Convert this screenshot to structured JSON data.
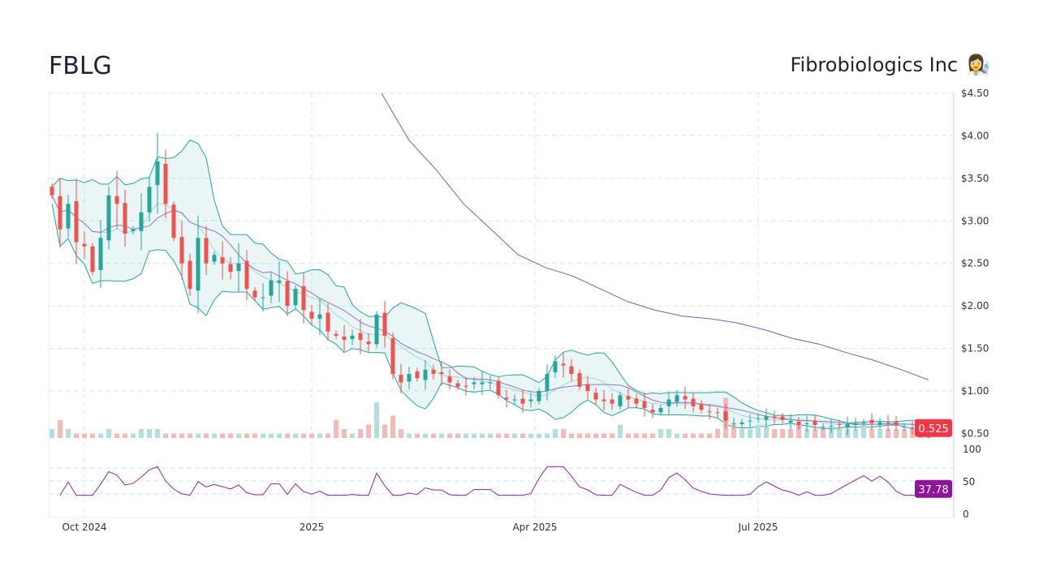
{
  "header": {
    "ticker": "FBLG",
    "company": "Fibrobiologics Inc",
    "company_icon": "scientist-emoji"
  },
  "colors": {
    "up": "#26a69a",
    "down": "#ef5350",
    "band": "#26a69a",
    "sma_long": "#5c6bc0",
    "sma_short": "#9575cd",
    "rsi": "#8e24aa",
    "last_price_badge": "#f23645",
    "rsi_badge": "#8e1599"
  },
  "chart_data": {
    "type": "candlestick",
    "price_axis": {
      "ticks": [
        "$4.50",
        "$4.00",
        "$3.50",
        "$3.00",
        "$2.50",
        "$2.00",
        "$1.50",
        "$1.00",
        "$0.50"
      ],
      "ylim": [
        0.5,
        4.5
      ]
    },
    "rsi_axis": {
      "ticks": [
        "100",
        "50",
        "0"
      ],
      "ylim": [
        0,
        100
      ],
      "levels": [
        70,
        50,
        30
      ]
    },
    "x_ticks": [
      {
        "label": "Oct 2024",
        "index": 4
      },
      {
        "label": "2025",
        "index": 32
      },
      {
        "label": "Apr 2025",
        "index": 59.5
      },
      {
        "label": "Jul 2025",
        "index": 87
      }
    ],
    "closes": [
      3.3,
      2.9,
      3.2,
      2.75,
      2.7,
      2.4,
      2.8,
      3.3,
      3.2,
      2.85,
      2.9,
      3.1,
      3.4,
      3.7,
      3.2,
      2.8,
      2.5,
      2.2,
      2.8,
      2.5,
      2.6,
      2.5,
      2.4,
      2.5,
      2.2,
      2.1,
      2.1,
      2.3,
      2.3,
      2.0,
      2.2,
      1.95,
      1.85,
      1.9,
      1.7,
      1.65,
      1.6,
      1.65,
      1.6,
      1.55,
      1.9,
      1.65,
      1.2,
      1.1,
      1.2,
      1.15,
      1.25,
      1.2,
      1.2,
      1.1,
      1.05,
      1.05,
      1.1,
      1.1,
      1.1,
      0.95,
      0.9,
      0.9,
      0.85,
      0.9,
      1.0,
      1.2,
      1.35,
      1.3,
      1.2,
      1.05,
      1.0,
      0.9,
      0.88,
      0.85,
      0.95,
      0.9,
      0.85,
      0.8,
      0.75,
      0.8,
      0.9,
      0.95,
      0.9,
      0.82,
      0.78,
      0.75,
      0.74,
      0.65,
      0.62,
      0.63,
      0.65,
      0.68,
      0.7,
      0.68,
      0.66,
      0.65,
      0.6,
      0.62,
      0.6,
      0.58,
      0.59,
      0.6,
      0.61,
      0.62,
      0.63,
      0.62,
      0.63,
      0.62,
      0.6,
      0.58,
      0.56,
      0.54,
      0.525
    ],
    "volumes": [
      2,
      4,
      2,
      1,
      1,
      1,
      1,
      2,
      1,
      1,
      1,
      2,
      2,
      2,
      1,
      1,
      1,
      1,
      1,
      1,
      1,
      1,
      1,
      1,
      1,
      1,
      1,
      1,
      1,
      1,
      1,
      1,
      1,
      1,
      1,
      4,
      2,
      1,
      2,
      3,
      8,
      3,
      5,
      2,
      1,
      1,
      1,
      1,
      1,
      1,
      1,
      1,
      1,
      1,
      1,
      1,
      1,
      1,
      1,
      1,
      1,
      1,
      2,
      2,
      1,
      1,
      1,
      1,
      1,
      1,
      3,
      1,
      1,
      1,
      1,
      2,
      2,
      1,
      1,
      1,
      1,
      1,
      2,
      9,
      3,
      2,
      2,
      3,
      3,
      2,
      2,
      2,
      3,
      2,
      2,
      2,
      2,
      2,
      2,
      2,
      3,
      2,
      2,
      2,
      2,
      2,
      2,
      2,
      2
    ],
    "sma_long": {
      "start_index": 40.6,
      "values": [
        4.5,
        3.95,
        3.6,
        3.2,
        2.9,
        2.6,
        2.45,
        2.35,
        2.2,
        2.05,
        1.95,
        1.88,
        1.85,
        1.8,
        1.72,
        1.62,
        1.55,
        1.45,
        1.36,
        1.25,
        1.13
      ]
    },
    "last_price": "0.525",
    "last_rsi": "37.78"
  }
}
